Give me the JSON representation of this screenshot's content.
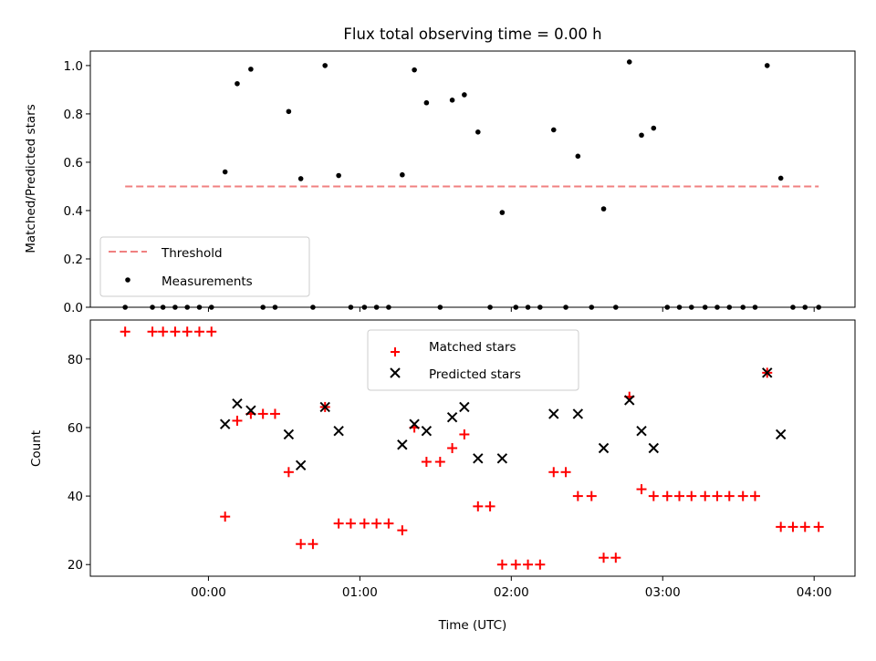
{
  "chart_data": {
    "title": "Flux total observing time = 0.00 h",
    "x_axis": {
      "label": "Time (UTC)",
      "unit": "hours",
      "range": [
        -0.78,
        4.27
      ],
      "ticks": [
        0,
        1,
        2,
        3,
        4
      ],
      "tick_labels": [
        "00:00",
        "01:00",
        "02:00",
        "03:00",
        "04:00"
      ]
    },
    "charts": [
      {
        "type": "scatter",
        "ylabel": "Matched/Predicted stars",
        "ylim": [
          0,
          1.06
        ],
        "yticks": [
          0,
          0.2,
          0.4,
          0.6,
          0.8,
          1.0
        ],
        "ytick_labels": [
          "0.0",
          "0.2",
          "0.4",
          "0.6",
          "0.8",
          "1.0"
        ],
        "legend": {
          "placement": "lower-left",
          "entries": [
            "Threshold",
            "Measurements"
          ]
        },
        "threshold": {
          "name": "Threshold",
          "y": 0.5,
          "x_range": [
            -0.55,
            4.03
          ],
          "color": "#f08080",
          "style": "dashed"
        },
        "series": [
          {
            "name": "Measurements",
            "color": "#000000",
            "points": [
              [
                -0.55,
                0.0
              ],
              [
                -0.37,
                0.0
              ],
              [
                -0.3,
                0.0
              ],
              [
                -0.22,
                0.0
              ],
              [
                -0.14,
                0.0
              ],
              [
                -0.06,
                0.0
              ],
              [
                0.02,
                0.0
              ],
              [
                0.11,
                0.56
              ],
              [
                0.19,
                0.925
              ],
              [
                0.28,
                0.985
              ],
              [
                0.36,
                0.0
              ],
              [
                0.44,
                0.0
              ],
              [
                0.53,
                0.81
              ],
              [
                0.61,
                0.532
              ],
              [
                0.69,
                0.0
              ],
              [
                0.77,
                1.0
              ],
              [
                0.86,
                0.545
              ],
              [
                0.94,
                0.0
              ],
              [
                1.03,
                0.0
              ],
              [
                1.11,
                0.0
              ],
              [
                1.19,
                0.0
              ],
              [
                1.28,
                0.548
              ],
              [
                1.36,
                0.982
              ],
              [
                1.44,
                0.846
              ],
              [
                1.53,
                0.0
              ],
              [
                1.61,
                0.857
              ],
              [
                1.69,
                0.879
              ],
              [
                1.78,
                0.725
              ],
              [
                1.86,
                0.0
              ],
              [
                1.94,
                0.392
              ],
              [
                2.03,
                0.0
              ],
              [
                2.11,
                0.0
              ],
              [
                2.19,
                0.0
              ],
              [
                2.28,
                0.734
              ],
              [
                2.36,
                0.0
              ],
              [
                2.44,
                0.625
              ],
              [
                2.53,
                0.0
              ],
              [
                2.61,
                0.407
              ],
              [
                2.69,
                0.0
              ],
              [
                2.78,
                1.015
              ],
              [
                2.86,
                0.712
              ],
              [
                2.94,
                0.741
              ],
              [
                3.03,
                0.0
              ],
              [
                3.11,
                0.0
              ],
              [
                3.19,
                0.0
              ],
              [
                3.28,
                0.0
              ],
              [
                3.36,
                0.0
              ],
              [
                3.44,
                0.0
              ],
              [
                3.53,
                0.0
              ],
              [
                3.61,
                0.0
              ],
              [
                3.69,
                1.0
              ],
              [
                3.78,
                0.534
              ],
              [
                3.86,
                0.0
              ],
              [
                3.94,
                0.0
              ],
              [
                4.03,
                0.0
              ]
            ]
          }
        ]
      },
      {
        "type": "scatter",
        "ylabel": "Count",
        "ylim": [
          16.6,
          91.4
        ],
        "yticks": [
          20,
          40,
          60,
          80
        ],
        "ytick_labels": [
          "20",
          "40",
          "60",
          "80"
        ],
        "legend": {
          "placement": "upper-center",
          "entries": [
            "Matched stars",
            "Predicted stars"
          ]
        },
        "series": [
          {
            "name": "Matched stars",
            "marker": "+",
            "color": "#ff0000",
            "points": [
              [
                -0.55,
                88
              ],
              [
                -0.37,
                88
              ],
              [
                -0.3,
                88
              ],
              [
                -0.22,
                88
              ],
              [
                -0.14,
                88
              ],
              [
                -0.06,
                88
              ],
              [
                0.02,
                88
              ],
              [
                0.11,
                34
              ],
              [
                0.19,
                62
              ],
              [
                0.28,
                64
              ],
              [
                0.36,
                64
              ],
              [
                0.44,
                64
              ],
              [
                0.53,
                47
              ],
              [
                0.61,
                26
              ],
              [
                0.69,
                26
              ],
              [
                0.77,
                66
              ],
              [
                0.86,
                32
              ],
              [
                0.94,
                32
              ],
              [
                1.03,
                32
              ],
              [
                1.11,
                32
              ],
              [
                1.19,
                32
              ],
              [
                1.28,
                30
              ],
              [
                1.36,
                60
              ],
              [
                1.44,
                50
              ],
              [
                1.53,
                50
              ],
              [
                1.61,
                54
              ],
              [
                1.69,
                58
              ],
              [
                1.78,
                37
              ],
              [
                1.86,
                37
              ],
              [
                1.94,
                20
              ],
              [
                2.03,
                20
              ],
              [
                2.11,
                20
              ],
              [
                2.19,
                20
              ],
              [
                2.28,
                47
              ],
              [
                2.36,
                47
              ],
              [
                2.44,
                40
              ],
              [
                2.53,
                40
              ],
              [
                2.61,
                22
              ],
              [
                2.69,
                22
              ],
              [
                2.78,
                69
              ],
              [
                2.86,
                42
              ],
              [
                2.94,
                40
              ],
              [
                3.03,
                40
              ],
              [
                3.11,
                40
              ],
              [
                3.19,
                40
              ],
              [
                3.28,
                40
              ],
              [
                3.36,
                40
              ],
              [
                3.44,
                40
              ],
              [
                3.53,
                40
              ],
              [
                3.61,
                40
              ],
              [
                3.69,
                76
              ],
              [
                3.78,
                31
              ],
              [
                3.86,
                31
              ],
              [
                3.94,
                31
              ],
              [
                4.03,
                31
              ]
            ]
          },
          {
            "name": "Predicted stars",
            "marker": "x",
            "color": "#000000",
            "points": [
              [
                0.11,
                61
              ],
              [
                0.19,
                67
              ],
              [
                0.28,
                65
              ],
              [
                0.53,
                58
              ],
              [
                0.61,
                49
              ],
              [
                0.77,
                66
              ],
              [
                0.86,
                59
              ],
              [
                1.28,
                55
              ],
              [
                1.36,
                61
              ],
              [
                1.44,
                59
              ],
              [
                1.61,
                63
              ],
              [
                1.69,
                66
              ],
              [
                1.78,
                51
              ],
              [
                1.94,
                51
              ],
              [
                2.28,
                64
              ],
              [
                2.44,
                64
              ],
              [
                2.61,
                54
              ],
              [
                2.78,
                68
              ],
              [
                2.86,
                59
              ],
              [
                2.94,
                54
              ],
              [
                3.69,
                76
              ],
              [
                3.78,
                58
              ]
            ]
          }
        ]
      }
    ]
  }
}
